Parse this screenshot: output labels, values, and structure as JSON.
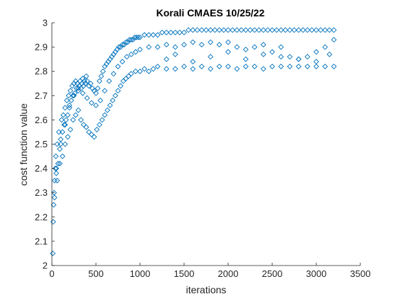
{
  "chart_data": {
    "type": "scatter",
    "title": "Korali CMAES 10/25/22",
    "xlabel": "iterations",
    "ylabel": "cost function value",
    "xlim": [
      0,
      3500
    ],
    "ylim": [
      2,
      3
    ],
    "xticks": [
      0,
      500,
      1000,
      1500,
      2000,
      2500,
      3000,
      3500
    ],
    "yticks": [
      2,
      2.1,
      2.2,
      2.3,
      2.4,
      2.5,
      2.6,
      2.7,
      2.8,
      2.9,
      3
    ],
    "xtick_labels": [
      "0",
      "500",
      "1000",
      "1500",
      "2000",
      "2500",
      "3000",
      "3500"
    ],
    "ytick_labels": [
      "2",
      "2.1",
      "2.2",
      "2.3",
      "2.4",
      "2.5",
      "2.6",
      "2.7",
      "2.8",
      "2.9",
      "3"
    ],
    "marker": "diamond",
    "marker_color": "#0072BD",
    "grid": false,
    "box": "open",
    "series": [
      {
        "values_description_points": true,
        "x": [
          10,
          15,
          20,
          25,
          30,
          40,
          45,
          50,
          60,
          70,
          80,
          90,
          100,
          110,
          120,
          130,
          140,
          150,
          160,
          170,
          180,
          190,
          200,
          210,
          220,
          230,
          240,
          250,
          260,
          270,
          280,
          290,
          300,
          310,
          320,
          330,
          340,
          350,
          360,
          370,
          380,
          390,
          400,
          420,
          440,
          460,
          480,
          500,
          520,
          540,
          560,
          580,
          600,
          620,
          640,
          660,
          680,
          700,
          720,
          740,
          760,
          780,
          800,
          820,
          840,
          860,
          880,
          900,
          920,
          940,
          960,
          980,
          1000,
          1050,
          1100,
          1150,
          1200,
          1250,
          1300,
          1350,
          1400,
          1450,
          1500,
          1550,
          1600,
          1650,
          1700,
          1750,
          1800,
          1850,
          1900,
          1950,
          2000,
          2050,
          2100,
          2150,
          2200,
          2250,
          2300,
          2350,
          2400,
          2450,
          2500,
          2550,
          2600,
          2650,
          2700,
          2750,
          2800,
          2850,
          2900,
          2950,
          3000,
          3050,
          3100,
          3150,
          3200,
          30,
          60,
          90,
          120,
          150,
          180,
          210,
          240,
          270,
          300,
          330,
          360,
          390,
          420,
          450,
          480,
          510,
          540,
          570,
          600,
          630,
          660,
          690,
          720,
          750,
          780,
          810,
          840,
          870,
          900,
          950,
          1000,
          1050,
          1100,
          1150,
          1200,
          1300,
          1400,
          1500,
          1600,
          1700,
          1800,
          1900,
          2000,
          2100,
          2200,
          2300,
          2400,
          2500,
          2600,
          2700,
          2800,
          2900,
          3000,
          3100,
          3200,
          50,
          100,
          150,
          200,
          250,
          300,
          350,
          400,
          450,
          500,
          550,
          600,
          650,
          700,
          750,
          800,
          850,
          900,
          950,
          1000,
          1100,
          1200,
          1300,
          1400,
          1500,
          1600,
          1700,
          1800,
          1900,
          2000,
          2100,
          2200,
          2300,
          2400,
          2500,
          2600,
          2700,
          2800,
          2900,
          3000,
          3100,
          3200,
          1300,
          1400,
          1600,
          1800,
          2000,
          2200,
          2400,
          2600,
          2800,
          3000,
          3150
        ],
        "y": [
          2.05,
          2.18,
          2.25,
          2.3,
          2.35,
          2.4,
          2.45,
          2.38,
          2.5,
          2.42,
          2.55,
          2.48,
          2.52,
          2.6,
          2.55,
          2.62,
          2.58,
          2.65,
          2.6,
          2.68,
          2.62,
          2.7,
          2.66,
          2.72,
          2.68,
          2.74,
          2.7,
          2.75,
          2.71,
          2.76,
          2.73,
          2.75,
          2.72,
          2.74,
          2.76,
          2.73,
          2.75,
          2.77,
          2.74,
          2.76,
          2.75,
          2.78,
          2.76,
          2.74,
          2.75,
          2.73,
          2.72,
          2.71,
          2.73,
          2.76,
          2.78,
          2.8,
          2.82,
          2.83,
          2.84,
          2.85,
          2.86,
          2.87,
          2.88,
          2.89,
          2.9,
          2.9,
          2.91,
          2.91,
          2.92,
          2.92,
          2.93,
          2.93,
          2.93,
          2.94,
          2.94,
          2.94,
          2.94,
          2.95,
          2.95,
          2.95,
          2.95,
          2.96,
          2.96,
          2.96,
          2.96,
          2.96,
          2.96,
          2.97,
          2.97,
          2.97,
          2.97,
          2.97,
          2.97,
          2.97,
          2.97,
          2.97,
          2.97,
          2.97,
          2.97,
          2.97,
          2.97,
          2.97,
          2.97,
          2.97,
          2.97,
          2.97,
          2.97,
          2.97,
          2.97,
          2.97,
          2.97,
          2.97,
          2.97,
          2.97,
          2.97,
          2.97,
          2.97,
          2.97,
          2.97,
          2.97,
          2.97,
          2.28,
          2.35,
          2.42,
          2.45,
          2.5,
          2.53,
          2.56,
          2.6,
          2.62,
          2.64,
          2.6,
          2.58,
          2.57,
          2.55,
          2.54,
          2.53,
          2.56,
          2.58,
          2.6,
          2.62,
          2.64,
          2.66,
          2.68,
          2.7,
          2.72,
          2.74,
          2.76,
          2.77,
          2.78,
          2.79,
          2.8,
          2.8,
          2.81,
          2.8,
          2.81,
          2.82,
          2.81,
          2.81,
          2.82,
          2.81,
          2.82,
          2.81,
          2.82,
          2.82,
          2.81,
          2.82,
          2.82,
          2.81,
          2.82,
          2.82,
          2.82,
          2.82,
          2.82,
          2.82,
          2.82,
          2.82,
          2.4,
          2.5,
          2.58,
          2.65,
          2.7,
          2.73,
          2.71,
          2.69,
          2.67,
          2.66,
          2.68,
          2.72,
          2.76,
          2.79,
          2.82,
          2.84,
          2.86,
          2.87,
          2.88,
          2.89,
          2.9,
          2.9,
          2.91,
          2.9,
          2.91,
          2.92,
          2.91,
          2.92,
          2.91,
          2.92,
          2.9,
          2.89,
          2.9,
          2.91,
          2.88,
          2.9,
          2.86,
          2.85,
          2.86,
          2.88,
          2.9,
          2.93,
          2.85,
          2.87,
          2.84,
          2.86,
          2.88,
          2.85,
          2.87,
          2.86,
          2.85,
          2.84,
          2.87
        ]
      }
    ]
  }
}
